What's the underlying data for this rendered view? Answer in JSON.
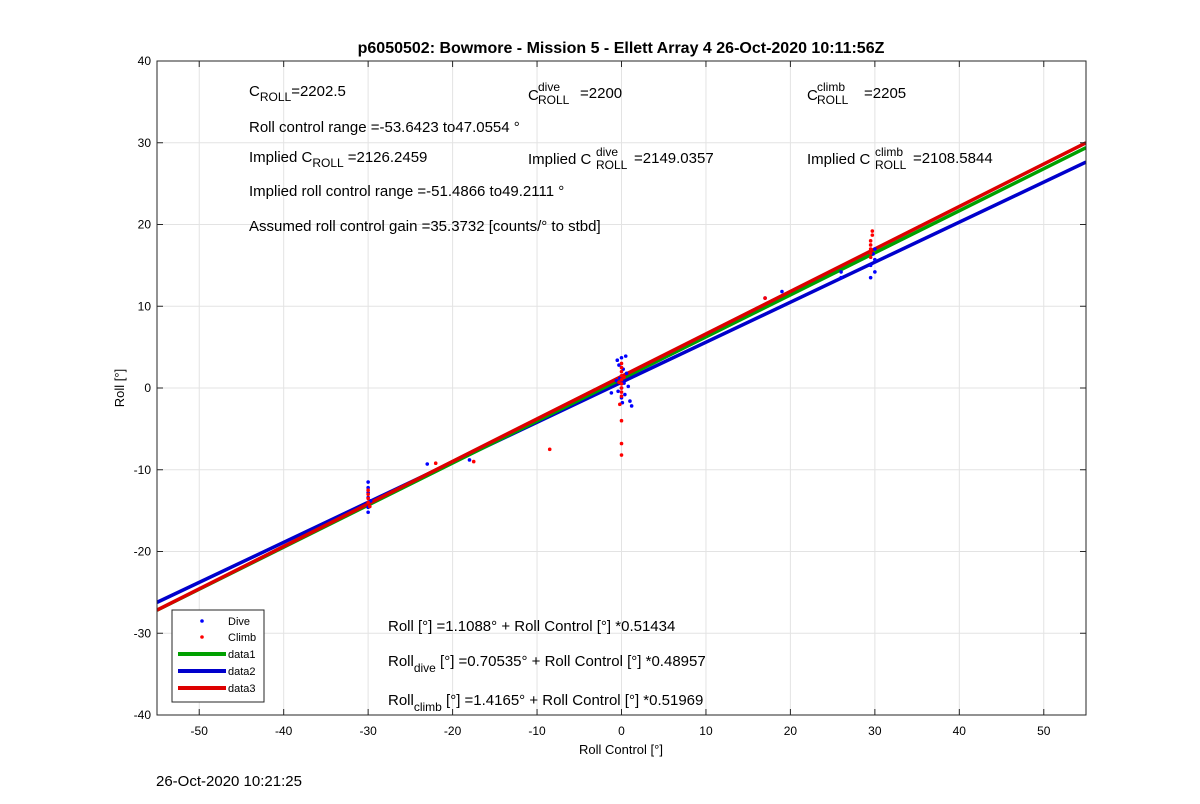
{
  "chart_data": {
    "type": "scatter",
    "title": "p6050502: Bowmore - Mission 5 - Ellett Array 4 26-Oct-2020 10:11:56Z",
    "xlabel": "Roll Control [°]",
    "ylabel": "Roll [°]",
    "xlim": [
      -55,
      55
    ],
    "ylim": [
      -40,
      40
    ],
    "xticks": [
      -50,
      -40,
      -30,
      -20,
      -10,
      0,
      10,
      20,
      30,
      40,
      50
    ],
    "yticks": [
      -40,
      -30,
      -20,
      -10,
      0,
      10,
      20,
      30,
      40
    ],
    "grid": true,
    "legend_position": "bottom-left",
    "legend": [
      "Dive",
      "Climb",
      "data1",
      "data2",
      "data3"
    ],
    "series": [
      {
        "name": "Dive",
        "kind": "points",
        "color": "#0000ff",
        "points": [
          [
            -30,
            -11.5
          ],
          [
            -30,
            -12.2
          ],
          [
            -30,
            -12.8
          ],
          [
            -30,
            -13.4
          ],
          [
            -30,
            -14
          ],
          [
            -30,
            -14.6
          ],
          [
            -30,
            -15.2
          ],
          [
            -29.7,
            -13.8
          ],
          [
            -23,
            -9.3
          ],
          [
            -18,
            -8.8
          ],
          [
            -0.5,
            3.4
          ],
          [
            0,
            3.7
          ],
          [
            0.5,
            3.9
          ],
          [
            -0.3,
            2.8
          ],
          [
            0.2,
            2.3
          ],
          [
            0.6,
            1.8
          ],
          [
            -0.2,
            1.2
          ],
          [
            0.3,
            0.6
          ],
          [
            0,
            0
          ],
          [
            -0.4,
            -0.4
          ],
          [
            0.4,
            -0.8
          ],
          [
            0,
            -1.2
          ],
          [
            1,
            -1.6
          ],
          [
            1.2,
            -2.2
          ],
          [
            -1.2,
            -0.6
          ],
          [
            0.8,
            0.2
          ],
          [
            -0.6,
            0.9
          ],
          [
            0.1,
            -1.8
          ],
          [
            17,
            11
          ],
          [
            19,
            11.8
          ],
          [
            26,
            13.5
          ],
          [
            26,
            14.2
          ],
          [
            29.5,
            13.5
          ],
          [
            30,
            14.2
          ],
          [
            29.5,
            15
          ],
          [
            30,
            15.7
          ],
          [
            29.8,
            16.4
          ],
          [
            30,
            17
          ]
        ]
      },
      {
        "name": "Climb",
        "kind": "points",
        "color": "#ff0000",
        "points": [
          [
            -30,
            -12.5
          ],
          [
            -30,
            -13
          ],
          [
            -30,
            -13.5
          ],
          [
            -30,
            -14
          ],
          [
            -29.8,
            -14.5
          ],
          [
            -22,
            -9.2
          ],
          [
            -17.5,
            -9
          ],
          [
            -8.5,
            -7.5
          ],
          [
            0,
            3
          ],
          [
            0,
            2.5
          ],
          [
            0,
            2
          ],
          [
            0,
            1.5
          ],
          [
            0,
            1
          ],
          [
            0,
            0.5
          ],
          [
            0,
            0
          ],
          [
            0,
            -0.5
          ],
          [
            0,
            -1
          ],
          [
            -0.2,
            -2
          ],
          [
            0,
            -4
          ],
          [
            0,
            -6.8
          ],
          [
            0,
            -8.2
          ],
          [
            0.3,
            1.3
          ],
          [
            -0.3,
            0.7
          ],
          [
            17,
            11
          ],
          [
            29.5,
            16
          ],
          [
            29.5,
            16.5
          ],
          [
            29.5,
            17
          ],
          [
            29.5,
            17.5
          ],
          [
            29.5,
            18
          ],
          [
            29.7,
            18.7
          ],
          [
            29.7,
            19.2
          ]
        ]
      },
      {
        "name": "data1",
        "kind": "line",
        "color": "#00a000",
        "intercept": 1.1088,
        "slope": 0.51434
      },
      {
        "name": "data2",
        "kind": "line",
        "color": "#0000cc",
        "intercept": 0.70535,
        "slope": 0.48957
      },
      {
        "name": "data3",
        "kind": "line",
        "color": "#dd0000",
        "intercept": 1.4165,
        "slope": 0.51969
      }
    ],
    "annotations": {
      "c_roll": {
        "base": "C",
        "sub": "ROLL",
        "value": "=2202.5"
      },
      "c_roll_dive": {
        "base": "C",
        "sup": "dive",
        "sub": "ROLL",
        "value": "=2200"
      },
      "c_roll_climb": {
        "base": "C",
        "sup": "climb",
        "sub": "ROLL",
        "value": "=2205"
      },
      "range": "Roll control range =-53.6423 to47.0554 °",
      "implied_label": "Implied ",
      "implied_c_roll": {
        "base": "C",
        "sub": "ROLL",
        "value": "=2126.2459"
      },
      "implied_c_roll_dive": {
        "base": "C",
        "sup": "dive",
        "sub": "ROLL",
        "value": "=2149.0357"
      },
      "implied_c_roll_climb": {
        "base": "C",
        "sup": "climb",
        "sub": "ROLL",
        "value": "=2108.5844"
      },
      "implied_range": "Implied roll control range =-51.4866 to49.2111 °",
      "gain": "Assumed roll control gain =35.3732 [counts/° to stbd]",
      "fit_all": "Roll [°] =1.1088° + Roll Control [°] *0.51434",
      "fit_dive": {
        "base": "Roll",
        "sub": "dive",
        "rest": " [°] =0.70535° + Roll Control [°] *0.48957"
      },
      "fit_climb": {
        "base": "Roll",
        "sub": "climb",
        "rest": " [°] =1.4165° + Roll Control [°] *0.51969"
      }
    }
  },
  "footer_timestamp": "26-Oct-2020 10:21:25"
}
